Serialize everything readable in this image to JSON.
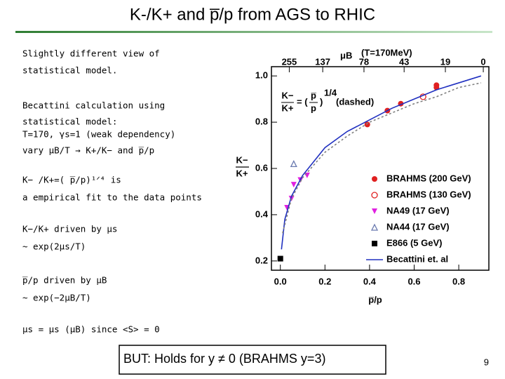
{
  "slide": {
    "title": "K-/K+ and p̅/p from AGS to RHIC",
    "lines": [
      "Slightly different view of",
      "statistical model.",
      "Becattini calculation using",
      "statistical model:",
      "T=170, γs=1 (weak dependency)",
      "vary μB/T → K+/K− and p̅/p",
      "K− /K+=( p̅/p)¹ᐟ⁴ is",
      "a empirical fit to the data points",
      "K−/K+  driven by μs",
      "~ exp(2μs/T)",
      "p̅/p   driven by  μB",
      "~ exp(−2μB/T)",
      "μs = μs (μB)   since <S> = 0"
    ],
    "box": "BUT: Holds for y ≠ 0 (BRAHMS y=3)",
    "page_number": 9
  },
  "chart_data": {
    "type": "scatter",
    "x_label": "p̅/p",
    "y_label": {
      "numerator": "K−",
      "denominator": "K+"
    },
    "top_axis_label": "μB",
    "top_axis_note": "(T=170MeV)",
    "annotation": {
      "lhs_num": "K−",
      "lhs_den": "K+",
      "eq": "= (",
      "p_num": "p̅",
      "p_den": "p",
      "close": ")",
      "power": "1/4",
      "note": "(dashed)"
    },
    "xlim": [
      -0.04,
      0.935
    ],
    "ylim": [
      0.16,
      1.04
    ],
    "xticks": [
      {
        "value": 0,
        "label": "0.0"
      },
      0.2,
      0.4,
      0.6,
      0.8
    ],
    "yticks": [
      0.2,
      0.4,
      0.6,
      0.8,
      {
        "value": 1,
        "label": "1.0"
      }
    ],
    "top_xticks": [
      {
        "value": 0.04,
        "label": "255"
      },
      {
        "value": 0.19,
        "label": "137"
      },
      {
        "value": 0.375,
        "label": "78"
      },
      {
        "value": 0.555,
        "label": "43"
      },
      {
        "value": 0.74,
        "label": "19"
      },
      {
        "value": 0.91,
        "label": "0"
      }
    ],
    "series": [
      {
        "name": "BRAHMS (200 GeV)",
        "color": "#e02020",
        "marker": "circle",
        "x": [
          0.39,
          0.48,
          0.54,
          0.7,
          0.7
        ],
        "values": [
          0.79,
          0.85,
          0.88,
          0.95,
          0.96
        ]
      },
      {
        "name": "BRAHMS (130 GeV)",
        "color": "#e02020",
        "marker": "open-circle",
        "x": [
          0.64
        ],
        "values": [
          0.91
        ]
      },
      {
        "name": "NA49 (17 GeV)",
        "color": "#e020e0",
        "marker": "triangle-down",
        "x": [
          0.03,
          0.05,
          0.06,
          0.09,
          0.12
        ],
        "values": [
          0.43,
          0.47,
          0.53,
          0.55,
          0.57
        ]
      },
      {
        "name": "NA44 (17 GeV)",
        "color": "#6a7ab0",
        "marker": "open-triangle",
        "x": [
          0.06
        ],
        "values": [
          0.62
        ]
      },
      {
        "name": "E866 (5 GeV)",
        "color": "#000000",
        "marker": "square",
        "x": [
          0.0
        ],
        "values": [
          0.21
        ]
      },
      {
        "name": "Becattini et. al",
        "color": "#2030c0",
        "marker": "line",
        "style": "solid",
        "x": [
          0.005,
          0.02,
          0.05,
          0.1,
          0.2,
          0.3,
          0.4,
          0.5,
          0.6,
          0.7,
          0.8,
          0.9
        ],
        "values": [
          0.25,
          0.38,
          0.48,
          0.57,
          0.69,
          0.76,
          0.81,
          0.86,
          0.9,
          0.94,
          0.97,
          1.0
        ]
      },
      {
        "color": "#808080",
        "marker": "line",
        "style": "dashed",
        "x": [
          0.01,
          0.05,
          0.1,
          0.2,
          0.3,
          0.4,
          0.5,
          0.6,
          0.7,
          0.8,
          0.9
        ],
        "values": [
          0.32,
          0.47,
          0.56,
          0.67,
          0.74,
          0.8,
          0.84,
          0.88,
          0.91,
          0.95,
          0.97
        ]
      }
    ]
  }
}
